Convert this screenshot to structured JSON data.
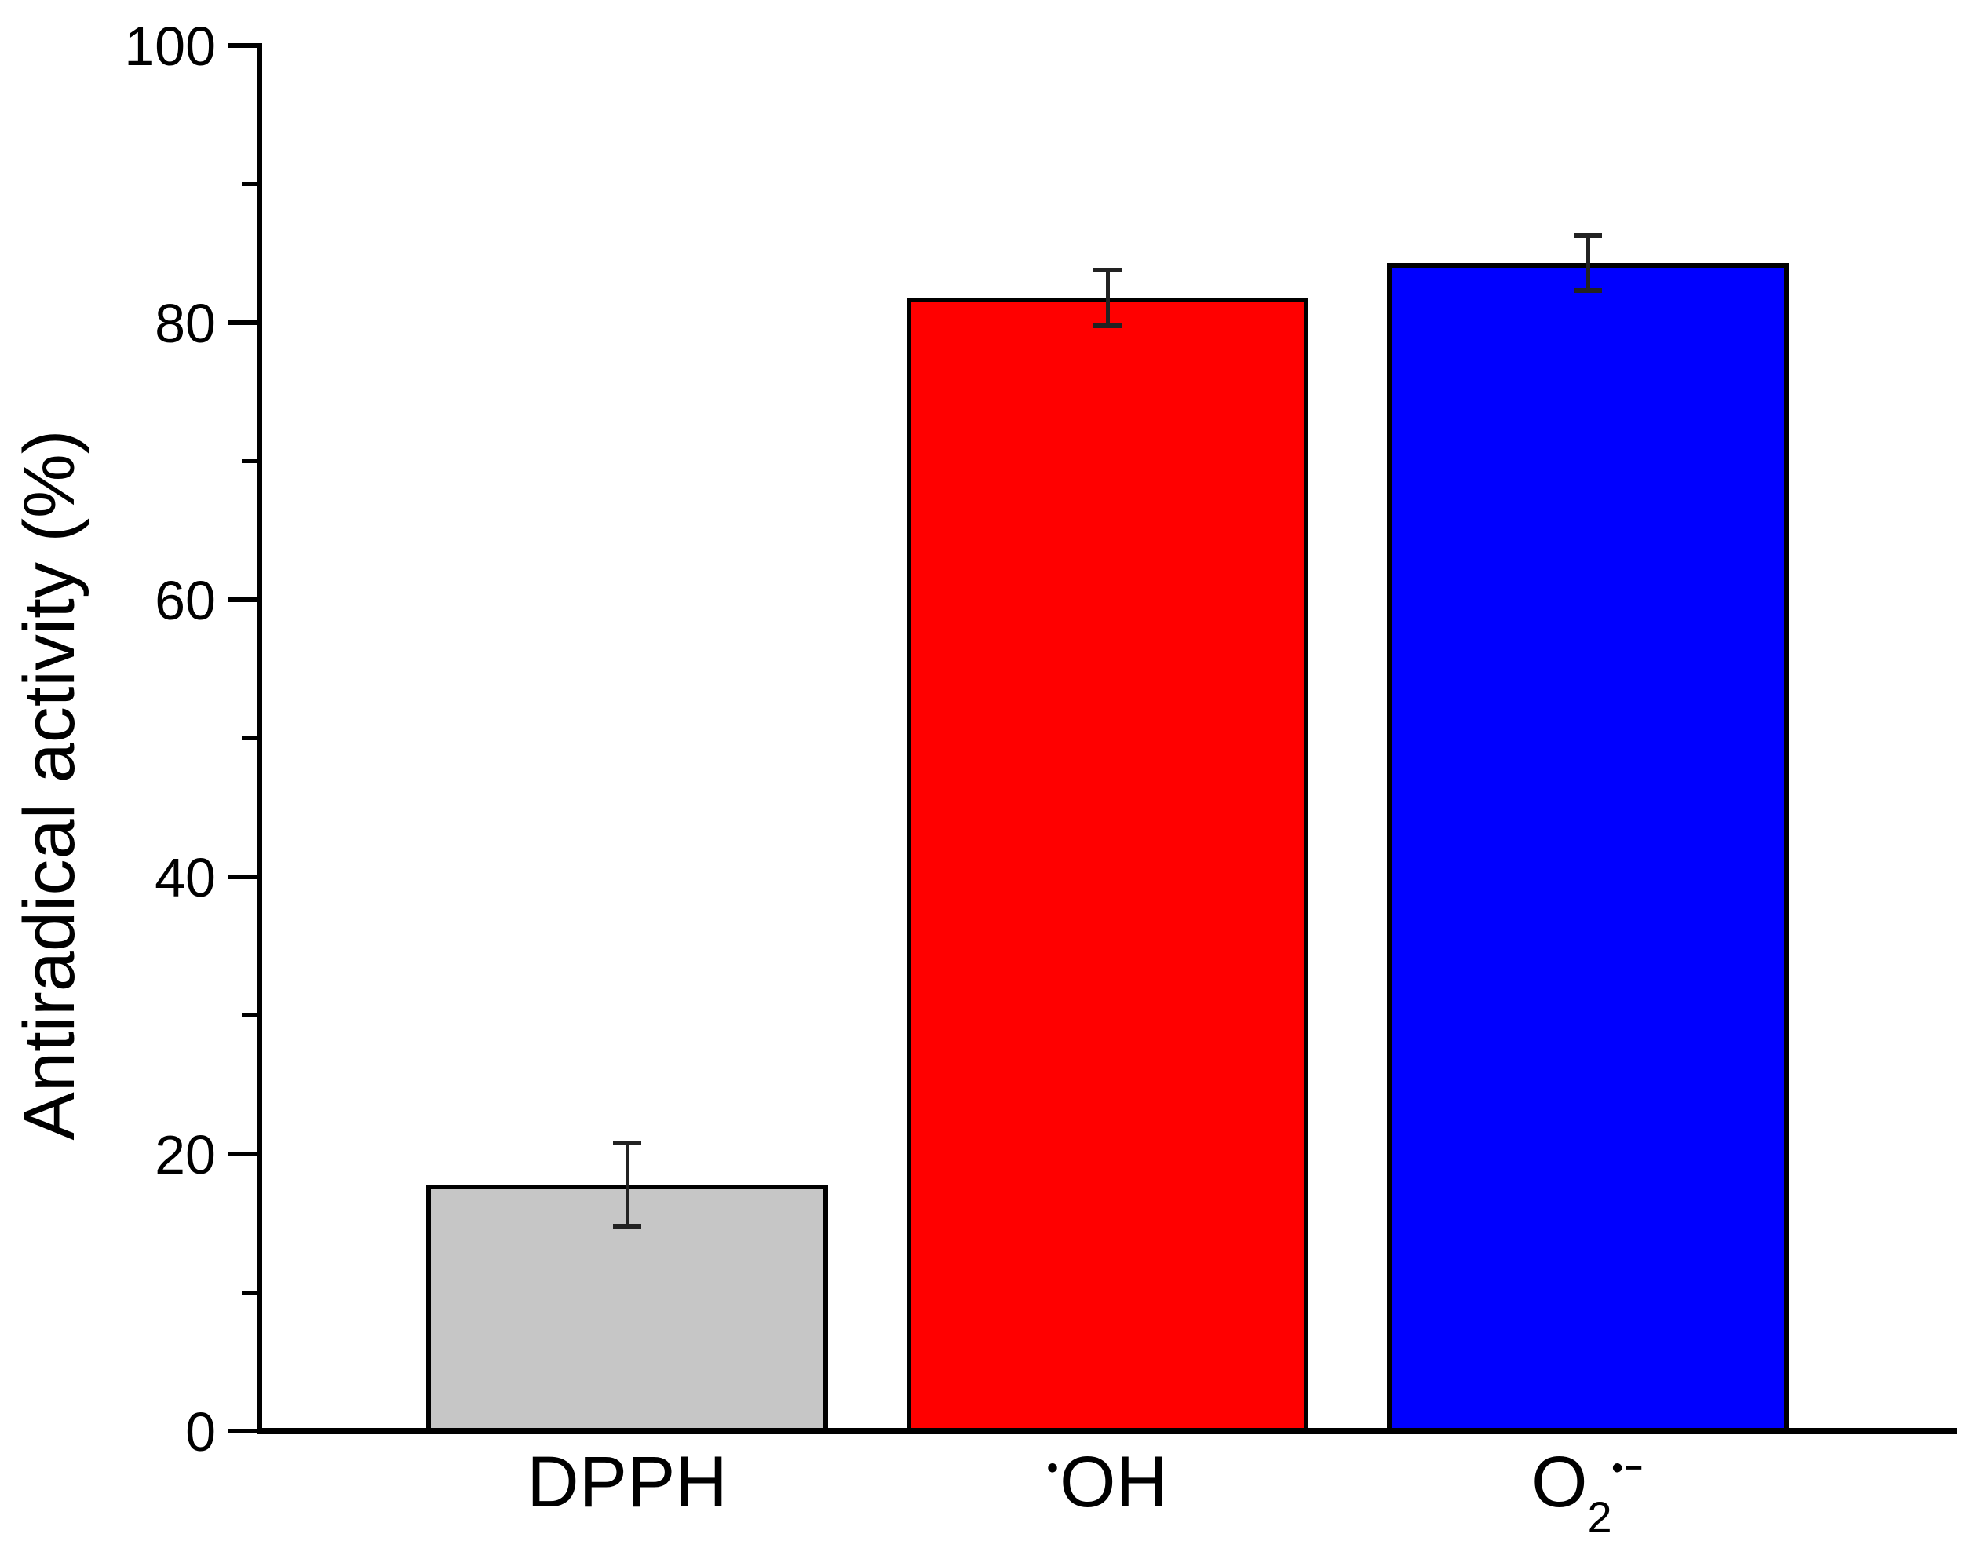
{
  "chart_data": {
    "type": "bar",
    "title": "",
    "xlabel": "",
    "ylabel": "Antiradical activity (%)",
    "ylim": [
      0,
      100
    ],
    "yticks_major": [
      0,
      20,
      40,
      60,
      80,
      100
    ],
    "yticks_minor": [
      10,
      30,
      50,
      70,
      90
    ],
    "grid": false,
    "legend": false,
    "categories": [
      "DPPH",
      "•OH",
      "O2•−"
    ],
    "category_parts": [
      [
        {
          "text": "DPPH",
          "style": "main"
        }
      ],
      [
        {
          "text": "•",
          "style": "sup"
        },
        {
          "text": "OH",
          "style": "main"
        }
      ],
      [
        {
          "text": "O",
          "style": "main"
        },
        {
          "text": "2",
          "style": "sub"
        },
        {
          "text": "•−",
          "style": "sup"
        }
      ]
    ],
    "series": [
      {
        "name": "Antiradical activity (%)",
        "values": [
          17.8,
          81.8,
          84.3
        ],
        "errors": [
          3.0,
          2.0,
          2.0
        ]
      }
    ],
    "bar_colors": [
      "#c6c6c6",
      "#ff0000",
      "#0000ff"
    ],
    "bar_edge_color": "#000000",
    "error_bar_color": "#222222",
    "axis_color": "#000000",
    "text_color": "#000000",
    "background_color": "#ffffff"
  }
}
